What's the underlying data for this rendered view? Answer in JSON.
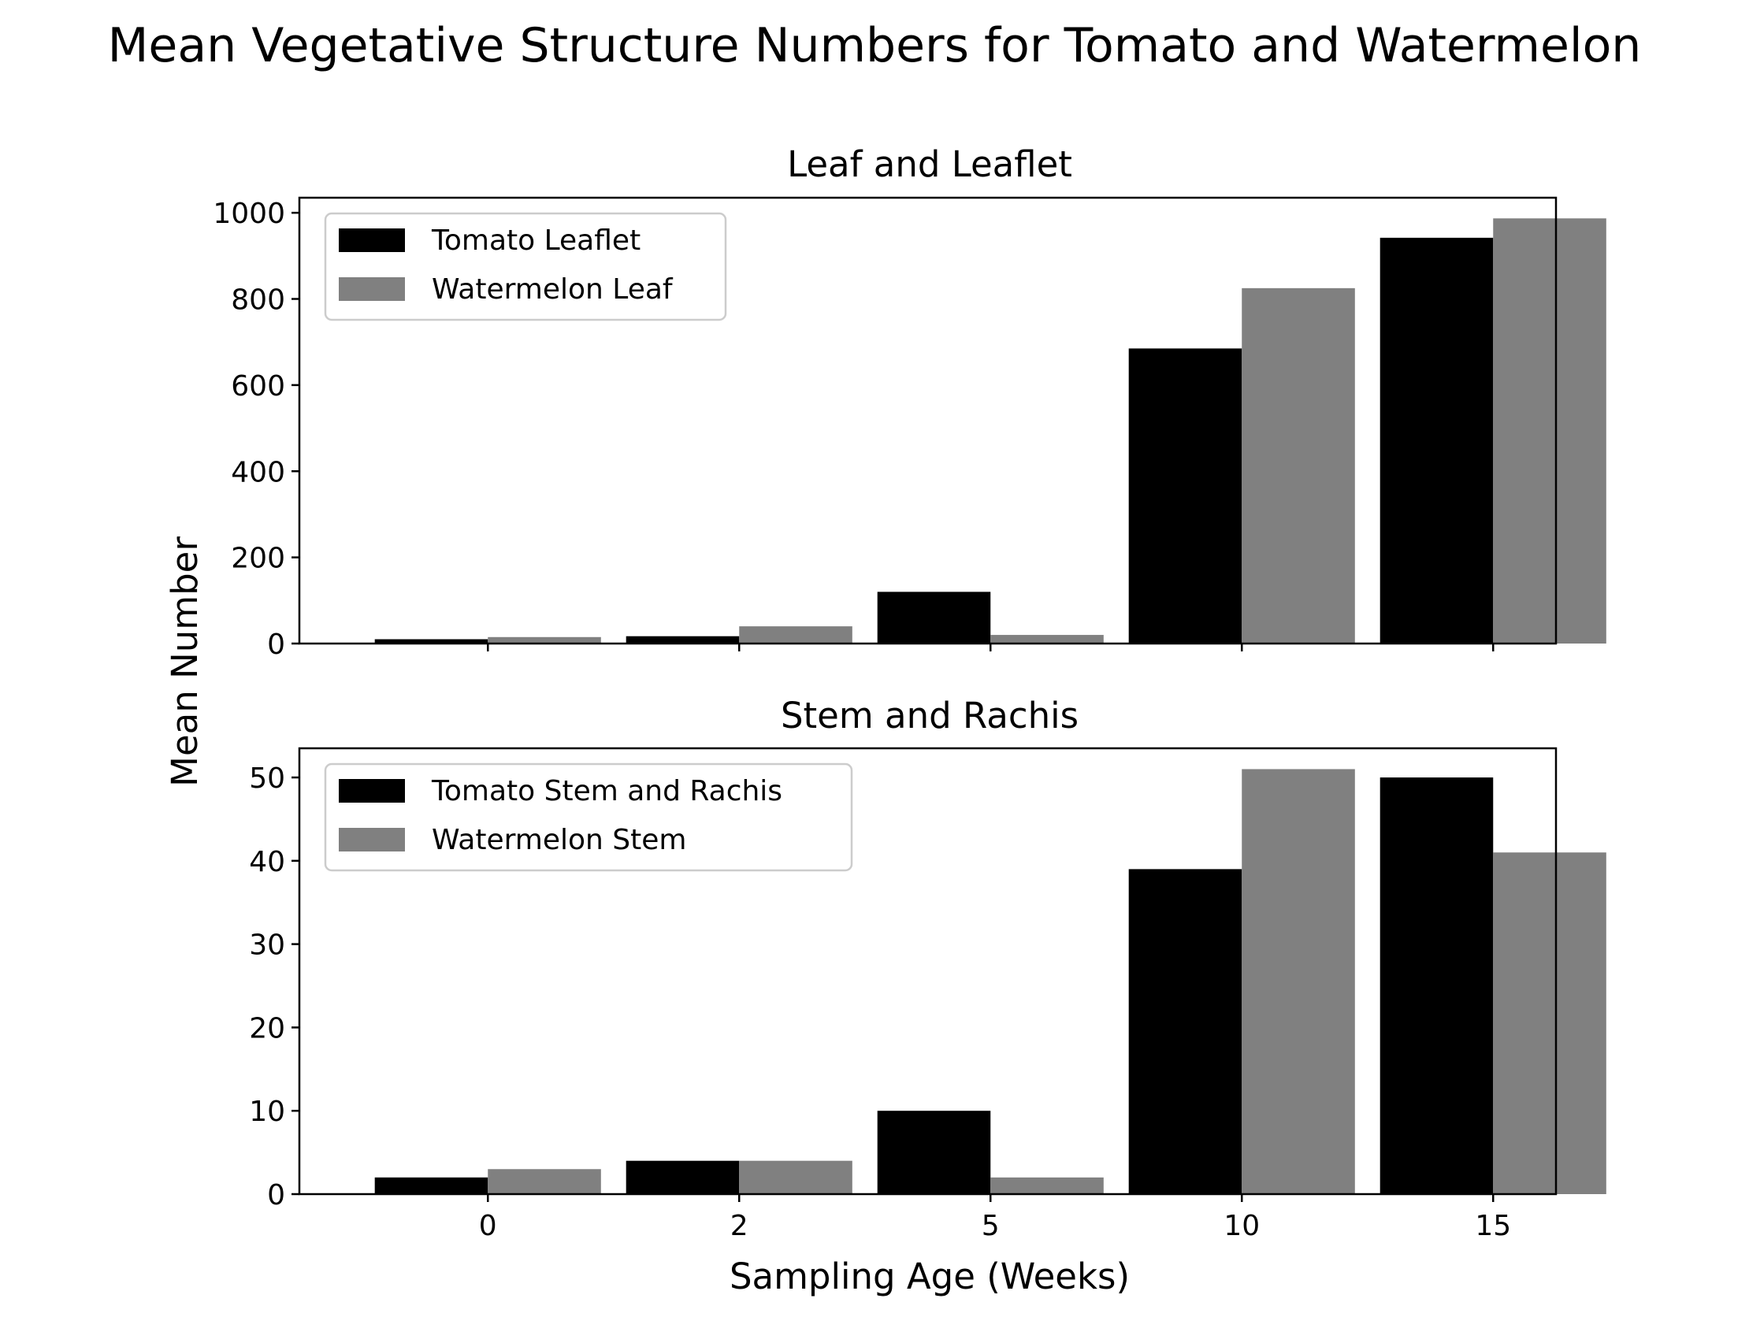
{
  "figure": {
    "title": "Mean Vegetative Structure Numbers for Tomato and Watermelon",
    "ylabel": "Mean Number",
    "xlabel": "Sampling Age (Weeks)"
  },
  "colors": {
    "tomato": "#000000",
    "watermelon": "#808080"
  },
  "chart_data": [
    {
      "type": "bar",
      "title": "Leaf and Leaflet",
      "categories": [
        "0",
        "2",
        "5",
        "10",
        "15"
      ],
      "series": [
        {
          "name": "Tomato Leaflet",
          "values": [
            10,
            17,
            120,
            685,
            942
          ]
        },
        {
          "name": "Watermelon Leaf",
          "values": [
            15,
            40,
            20,
            825,
            987
          ]
        }
      ],
      "yticks": [
        0,
        200,
        400,
        600,
        800,
        1000
      ],
      "ylim": [
        0,
        1035
      ],
      "legend": "upper left",
      "grid": false
    },
    {
      "type": "bar",
      "title": "Stem and Rachis",
      "categories": [
        "0",
        "2",
        "5",
        "10",
        "15"
      ],
      "series": [
        {
          "name": "Tomato Stem and Rachis",
          "values": [
            2,
            4,
            10,
            39,
            50
          ]
        },
        {
          "name": "Watermelon Stem",
          "values": [
            3,
            4,
            2,
            51,
            41
          ]
        }
      ],
      "yticks": [
        0,
        10,
        20,
        30,
        40,
        50
      ],
      "ylim": [
        0,
        53.5
      ],
      "legend": "upper left",
      "grid": false
    }
  ]
}
